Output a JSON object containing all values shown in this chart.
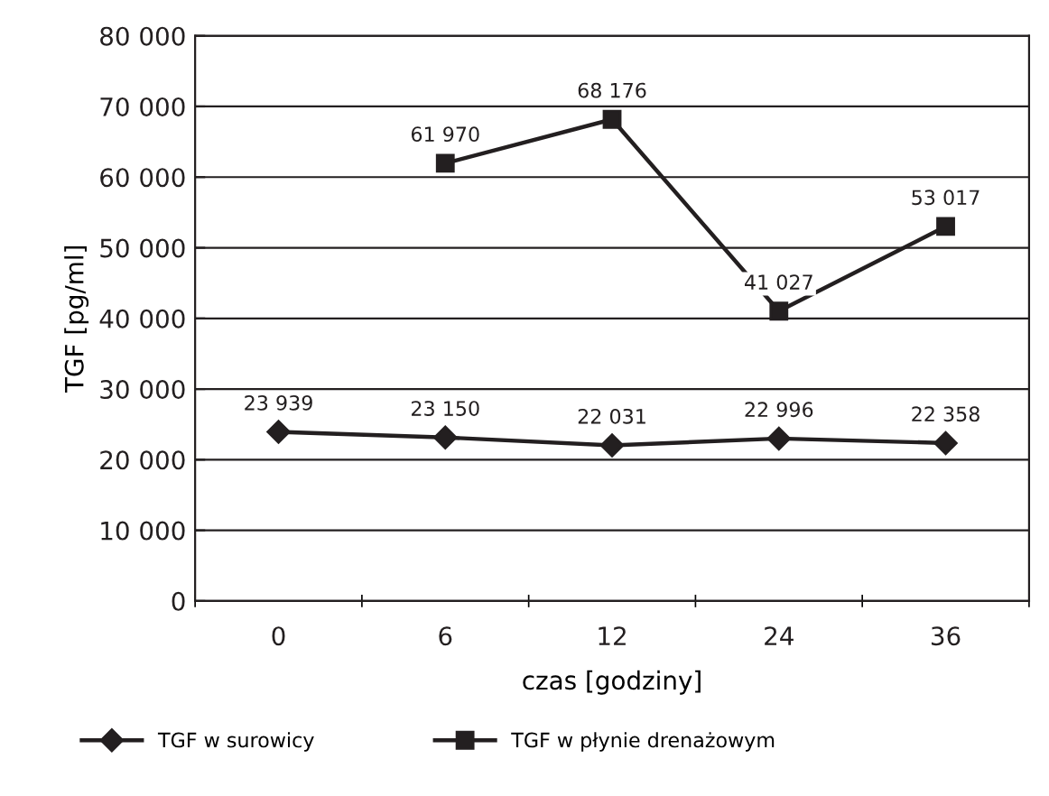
{
  "chart_data": {
    "type": "line",
    "xlabel": "czas [godziny]",
    "ylabel": "TGF [pg/ml]",
    "categories": [
      "0",
      "6",
      "12",
      "24",
      "36"
    ],
    "series": [
      {
        "name": "TGF w surowicy",
        "color": "#231f20",
        "marker": "diamond",
        "values": [
          23939,
          23150,
          22031,
          22996,
          22358
        ],
        "value_labels": [
          "23 939",
          "23 150",
          "22 031",
          "22 996",
          "22 358"
        ]
      },
      {
        "name": "TGF w płynie drenażowym",
        "color": "#231f20",
        "marker": "square",
        "values": [
          null,
          61970,
          68176,
          41027,
          53017
        ],
        "value_labels": [
          null,
          "61 970",
          "68 176",
          "41 027",
          "53 017"
        ]
      }
    ],
    "ylim": [
      0,
      80000
    ],
    "yticks": [
      0,
      {
        "value": 10000,
        "label": "10 000"
      },
      {
        "value": 20000,
        "label": "20 000"
      },
      {
        "value": 30000,
        "label": "30 000"
      },
      {
        "value": 40000,
        "label": "40 000"
      },
      {
        "value": 50000,
        "label": "50 000"
      },
      {
        "value": 60000,
        "label": "60 000"
      },
      {
        "value": 70000,
        "label": "70 000"
      },
      {
        "value": 80000,
        "label": "80 000"
      }
    ],
    "grid": "y",
    "legend": "bottom",
    "line_style": "solid"
  }
}
